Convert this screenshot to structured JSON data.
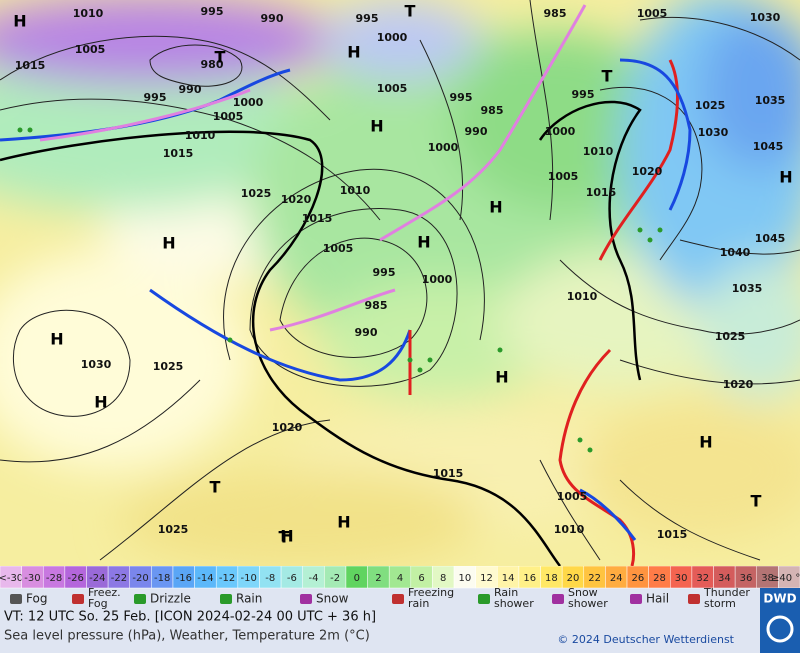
{
  "map": {
    "isobar_labels": [
      "1010",
      "995",
      "990",
      "995",
      "985",
      "1005",
      "1030",
      "1005",
      "1015",
      "980",
      "1000",
      "990",
      "995",
      "1000",
      "1005",
      "1005",
      "995",
      "985",
      "995",
      "1025",
      "1035",
      "1010",
      "1015",
      "1000",
      "990",
      "1000",
      "1030",
      "1010",
      "1045",
      "1005",
      "1015",
      "1020",
      "1010",
      "1025",
      "1020",
      "1015",
      "1005",
      "1040",
      "1045",
      "995",
      "1000",
      "1010",
      "1035",
      "985",
      "990",
      "1025",
      "1030",
      "1025",
      "1020",
      "1020",
      "1015",
      "1005",
      "1010",
      "1015",
      "1025"
    ],
    "centers": [
      "H",
      "T",
      "H",
      "T",
      "H",
      "T",
      "H",
      "H",
      "H",
      "H",
      "H",
      "H",
      "H",
      "H",
      "T",
      "H",
      "T",
      "T",
      "H"
    ]
  },
  "legend": {
    "temperature": [
      {
        "label": "<-30",
        "color": "#e8b8ec"
      },
      {
        "label": "-30",
        "color": "#d88ee0"
      },
      {
        "label": "-28",
        "color": "#c878e0"
      },
      {
        "label": "-26",
        "color": "#b466dc"
      },
      {
        "label": "-24",
        "color": "#9a6ad8"
      },
      {
        "label": "-22",
        "color": "#8c78e4"
      },
      {
        "label": "-20",
        "color": "#7a86ec"
      },
      {
        "label": "-18",
        "color": "#6a96f2"
      },
      {
        "label": "-16",
        "color": "#5aa6f6"
      },
      {
        "label": "-14",
        "color": "#5cb8fa"
      },
      {
        "label": "-12",
        "color": "#6ac8fc"
      },
      {
        "label": "-10",
        "color": "#7ed6fa"
      },
      {
        "label": "-8",
        "color": "#92e2f2"
      },
      {
        "label": "-6",
        "color": "#a4eae4"
      },
      {
        "label": "-4",
        "color": "#b4f0d4"
      },
      {
        "label": "-2",
        "color": "#a4eab4"
      },
      {
        "label": "0",
        "color": "#60d460"
      },
      {
        "label": "2",
        "color": "#80de80"
      },
      {
        "label": "4",
        "color": "#a2e892"
      },
      {
        "label": "6",
        "color": "#c2f0a4"
      },
      {
        "label": "8",
        "color": "#e2f8c4"
      },
      {
        "label": "10",
        "color": "#fcfcf0"
      },
      {
        "label": "12",
        "color": "#fffad0"
      },
      {
        "label": "14",
        "color": "#fff4a8"
      },
      {
        "label": "16",
        "color": "#fff088"
      },
      {
        "label": "18",
        "color": "#ffe866"
      },
      {
        "label": "20",
        "color": "#ffd848"
      },
      {
        "label": "22",
        "color": "#ffc440"
      },
      {
        "label": "24",
        "color": "#ffac40"
      },
      {
        "label": "26",
        "color": "#ff9440"
      },
      {
        "label": "28",
        "color": "#ff7c48"
      },
      {
        "label": "30",
        "color": "#f46450"
      },
      {
        "label": "32",
        "color": "#e45c58"
      },
      {
        "label": "34",
        "color": "#d45c5c"
      },
      {
        "label": "36",
        "color": "#c46464"
      },
      {
        "label": "38",
        "color": "#b47474"
      },
      {
        "label": "≥40 °C",
        "color": "#d4b4b4"
      }
    ],
    "weather": [
      {
        "label": [
          "Fog"
        ]
      },
      {
        "label": [
          "Freez.",
          "Fog"
        ]
      },
      {
        "label": [
          "Drizzle"
        ]
      },
      {
        "label": [
          "Rain"
        ]
      },
      {
        "label": [
          "Snow"
        ]
      },
      {
        "label": [
          "Freezing",
          "rain"
        ]
      },
      {
        "label": [
          "Rain",
          "shower"
        ]
      },
      {
        "label": [
          "Snow",
          "shower"
        ]
      },
      {
        "label": [
          "Hail"
        ]
      },
      {
        "label": [
          "Thunder",
          "storm"
        ]
      }
    ]
  },
  "footer": {
    "valid_time": "VT: 12 UTC So.  25 Feb. [ICON 2024-02-24  00 UTC + 36 h]",
    "description": "Sea level pressure (hPa), Weather, Temperature 2m (°C)",
    "copyright": "© 2024 Deutscher Wetterdienst",
    "logo": "DWD"
  }
}
